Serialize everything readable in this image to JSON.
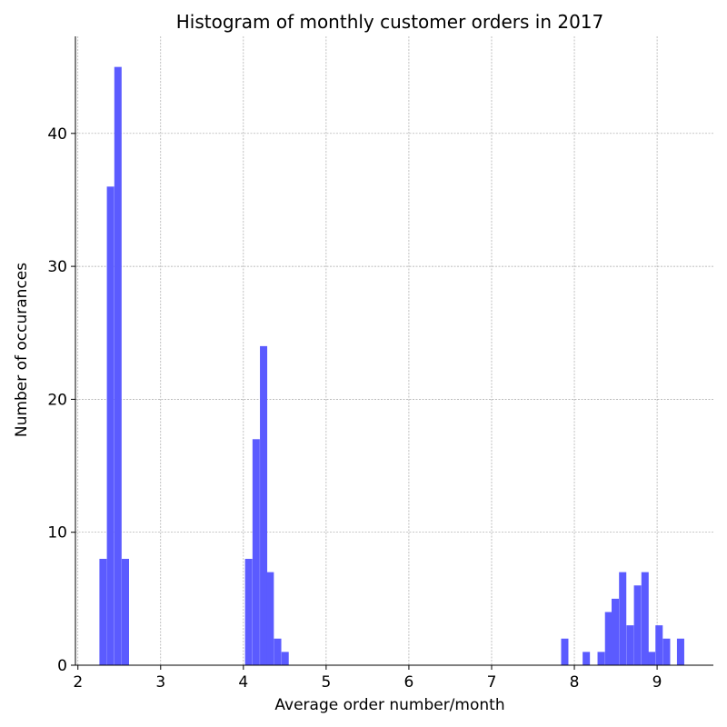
{
  "chart_data": {
    "type": "bar",
    "title": "Histogram of monthly customer orders in 2017",
    "xlabel": "Average order number/month",
    "ylabel": "Number of occurances",
    "xlim": [
      1.97,
      9.68
    ],
    "ylim": [
      0,
      47.3
    ],
    "xticks": [
      2,
      3,
      4,
      5,
      6,
      7,
      8,
      9
    ],
    "yticks": [
      0,
      10,
      20,
      30,
      40
    ],
    "grid": true,
    "bar_color": "#5b5bff",
    "bin_width": 0.088,
    "bins": [
      {
        "x": 2.26,
        "count": 8
      },
      {
        "x": 2.35,
        "count": 36
      },
      {
        "x": 2.44,
        "count": 45
      },
      {
        "x": 2.53,
        "count": 8
      },
      {
        "x": 4.02,
        "count": 8
      },
      {
        "x": 4.11,
        "count": 17
      },
      {
        "x": 4.2,
        "count": 24
      },
      {
        "x": 4.28,
        "count": 7
      },
      {
        "x": 4.37,
        "count": 2
      },
      {
        "x": 4.46,
        "count": 1
      },
      {
        "x": 7.84,
        "count": 2
      },
      {
        "x": 8.1,
        "count": 1
      },
      {
        "x": 8.28,
        "count": 1
      },
      {
        "x": 8.37,
        "count": 4
      },
      {
        "x": 8.45,
        "count": 5
      },
      {
        "x": 8.54,
        "count": 7
      },
      {
        "x": 8.63,
        "count": 3
      },
      {
        "x": 8.72,
        "count": 6
      },
      {
        "x": 8.81,
        "count": 7
      },
      {
        "x": 8.89,
        "count": 1
      },
      {
        "x": 8.98,
        "count": 3
      },
      {
        "x": 9.07,
        "count": 2
      },
      {
        "x": 9.24,
        "count": 2
      }
    ]
  }
}
